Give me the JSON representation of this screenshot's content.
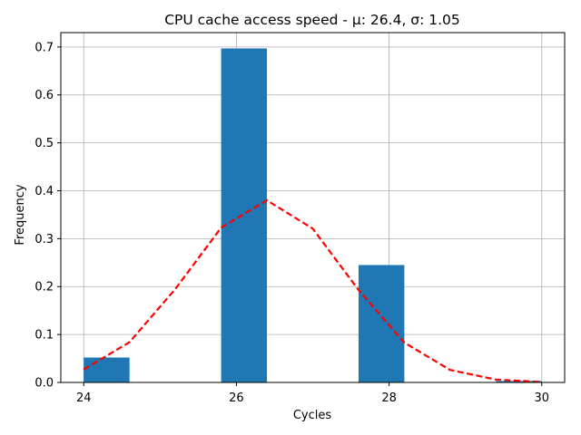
{
  "chart_data": {
    "type": "bar",
    "title": "CPU cache access speed - μ: 26.4, σ: 1.05",
    "xlabel": "Cycles",
    "ylabel": "Frequency",
    "xlim": [
      23.7,
      30.3
    ],
    "ylim": [
      0,
      0.73
    ],
    "grid": true,
    "xticks": [
      24,
      26,
      28,
      30
    ],
    "yticks": [
      0.0,
      0.1,
      0.2,
      0.3,
      0.4,
      0.5,
      0.6,
      0.7
    ],
    "histogram": {
      "bin_edges": [
        24.0,
        24.6,
        25.2,
        25.8,
        26.4,
        27.0,
        27.6,
        28.2,
        28.8,
        29.4,
        30.0
      ],
      "values": [
        0.052,
        0.0,
        0.0,
        0.697,
        0.0,
        0.0,
        0.245,
        0.0,
        0.0,
        0.003
      ],
      "color": "#1f77b4"
    },
    "series": [
      {
        "type": "line",
        "style": "dashed",
        "color": "#ff0000",
        "x": [
          24.0,
          24.6,
          25.2,
          25.8,
          26.4,
          27.0,
          27.6,
          28.2,
          28.8,
          29.4,
          30.0
        ],
        "values": [
          0.027,
          0.084,
          0.195,
          0.323,
          0.38,
          0.321,
          0.193,
          0.083,
          0.026,
          0.006,
          0.001
        ]
      }
    ]
  }
}
